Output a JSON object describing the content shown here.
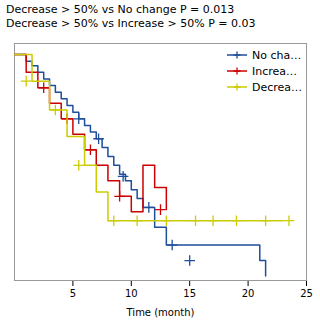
{
  "chart_data": {
    "type": "step",
    "title": "Decrease > 50% vs No change P = 0.013\nDecrease > 50% vs Increase > 50% P = 0.03",
    "xlabel": "Time (month)",
    "xlim": [
      0,
      25
    ],
    "xticks": [
      5,
      10,
      15,
      20,
      25
    ],
    "ylim": [
      -0.02,
      1.05
    ],
    "tick_labels": "x",
    "grid": false,
    "legend": "upper right",
    "series": [
      {
        "name": "No cha…",
        "color": "#1f4e9b",
        "marker": "plus",
        "x": [
          0,
          1,
          1.5,
          2,
          2.5,
          3,
          3.5,
          4,
          4.5,
          5,
          5.5,
          6,
          6.5,
          7,
          7.5,
          8,
          8.5,
          9,
          9.5,
          10,
          10.5,
          11,
          12,
          13,
          21,
          21.5
        ],
        "values": [
          1.0,
          0.97,
          0.95,
          0.92,
          0.89,
          0.86,
          0.83,
          0.8,
          0.77,
          0.74,
          0.71,
          0.68,
          0.65,
          0.62,
          0.58,
          0.54,
          0.5,
          0.46,
          0.43,
          0.39,
          0.35,
          0.31,
          0.22,
          0.14,
          0.07,
          0.0
        ],
        "censor_x": [
          5.5,
          7.2,
          9.3,
          11.5,
          13.5,
          15.0
        ],
        "censor_values": [
          0.71,
          0.62,
          0.45,
          0.31,
          0.14,
          0.07
        ]
      },
      {
        "name": "Increa…",
        "color": "#cc0000",
        "marker": "plus",
        "x": [
          0,
          1,
          2,
          3,
          4,
          5,
          6,
          7,
          8,
          9,
          10,
          11,
          12,
          13
        ],
        "values": [
          1.0,
          0.92,
          0.85,
          0.78,
          0.71,
          0.64,
          0.57,
          0.5,
          0.43,
          0.36,
          0.29,
          0.5,
          0.4,
          0.3
        ],
        "censor_x": [
          2.5,
          4.5,
          6.5,
          9.0,
          12.5
        ],
        "censor_values": [
          0.85,
          0.71,
          0.57,
          0.36,
          0.3
        ]
      },
      {
        "name": "Decrea…",
        "color": "#cccc00",
        "marker": "plus",
        "x": [
          0,
          1.5,
          3,
          4.5,
          6,
          7,
          8,
          10,
          11,
          23
        ],
        "values": [
          1.0,
          0.88,
          0.75,
          0.63,
          0.5,
          0.38,
          0.25,
          0.25,
          0.25,
          0.25
        ],
        "censor_x": [
          1.0,
          3.5,
          5.5,
          8.5,
          10.5,
          13.0,
          15.5,
          17.0,
          19.0,
          21.5,
          23.5
        ],
        "censor_values": [
          0.88,
          0.75,
          0.5,
          0.25,
          0.25,
          0.25,
          0.25,
          0.25,
          0.25,
          0.25,
          0.25
        ]
      }
    ]
  }
}
